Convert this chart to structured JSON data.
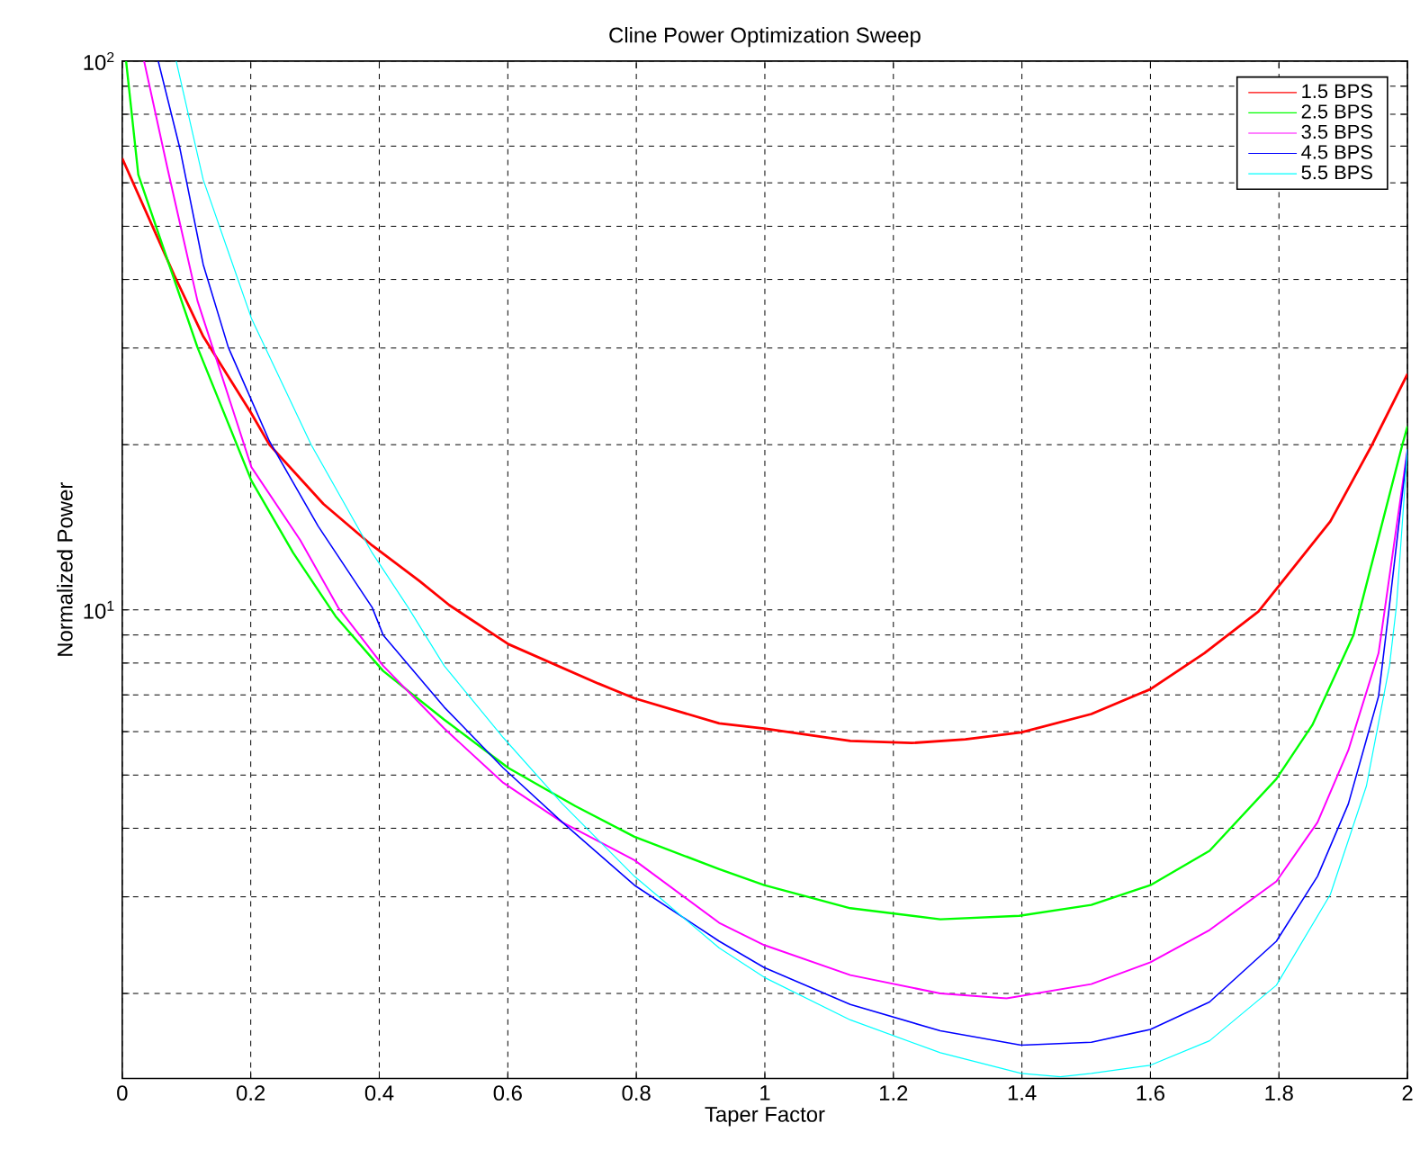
{
  "chart_data": {
    "type": "line",
    "title": "Cline Power Optimization Sweep",
    "xlabel": "Taper Factor",
    "ylabel": "Normalized Power",
    "log": "y",
    "grid": true,
    "legend": "top right",
    "line_style": "solid",
    "xlim": [
      0,
      2
    ],
    "ylim": [
      1.4,
      100
    ],
    "xticks": [
      0,
      0.2,
      0.4,
      0.6,
      0.8,
      1,
      1.2,
      1.4,
      1.6,
      1.8,
      2
    ],
    "yticks": [
      {
        "value": 2,
        "label": null
      },
      {
        "value": 3,
        "label": null
      },
      {
        "value": 4,
        "label": null
      },
      {
        "value": 5,
        "label": null
      },
      {
        "value": 6,
        "label": null
      },
      {
        "value": 7,
        "label": null
      },
      {
        "value": 8,
        "label": null
      },
      {
        "value": 9,
        "label": null
      },
      {
        "value": 10,
        "label": "10$^{1}$"
      },
      {
        "value": 20,
        "label": null
      },
      {
        "value": 30,
        "label": null
      },
      {
        "value": 40,
        "label": null
      },
      {
        "value": 50,
        "label": null
      },
      {
        "value": 60,
        "label": null
      },
      {
        "value": 70,
        "label": null
      },
      {
        "value": 80,
        "label": null
      },
      {
        "value": 90,
        "label": null
      },
      {
        "value": 100,
        "label": "10$^{2}$"
      }
    ],
    "series": [
      {
        "name": "1.5 BPS",
        "color": "#ff0000",
        "x": [
          0,
          0.081,
          0.126,
          0.201,
          0.229,
          0.313,
          0.389,
          0.462,
          0.509,
          0.601,
          0.741,
          0.797,
          0.929,
          0.999,
          1.133,
          1.228,
          1.312,
          1.399,
          1.508,
          1.6,
          1.684,
          1.768,
          1.88,
          1.944,
          2
        ],
        "values": [
          66.5,
          40.7,
          31.5,
          22.8,
          20.0,
          15.6,
          13.1,
          11.3,
          10.2,
          8.66,
          7.34,
          6.9,
          6.21,
          6.08,
          5.77,
          5.72,
          5.81,
          5.98,
          6.46,
          7.17,
          8.34,
          9.93,
          14.5,
          19.9,
          26.9
        ]
      },
      {
        "name": "2.5 BPS",
        "color": "#00ff00",
        "x": [
          0.006,
          0.025,
          0.117,
          0.201,
          0.266,
          0.333,
          0.406,
          0.501,
          0.601,
          0.705,
          0.797,
          0.929,
          0.999,
          1.133,
          1.273,
          1.396,
          1.508,
          1.6,
          1.692,
          1.796,
          1.852,
          1.916,
          1.992,
          2
        ],
        "values": [
          100,
          62.1,
          30.1,
          17.2,
          12.7,
          9.7,
          7.74,
          6.31,
          5.15,
          4.39,
          3.86,
          3.37,
          3.15,
          2.86,
          2.73,
          2.77,
          2.9,
          3.15,
          3.64,
          4.92,
          6.17,
          9.0,
          20.0,
          21.6
        ]
      },
      {
        "name": "3.5 BPS",
        "color": "#ff00ff",
        "x": [
          0.034,
          0.07,
          0.117,
          0.201,
          0.277,
          0.336,
          0.406,
          0.501,
          0.593,
          0.685,
          0.797,
          0.929,
          0.999,
          1.133,
          1.273,
          1.376,
          1.508,
          1.6,
          1.692,
          1.796,
          1.86,
          1.908,
          1.955,
          2
        ],
        "values": [
          100,
          64.1,
          36.6,
          18.2,
          13.4,
          10.1,
          7.91,
          6.08,
          4.84,
          4.1,
          3.5,
          2.69,
          2.45,
          2.16,
          2.0,
          1.96,
          2.08,
          2.28,
          2.61,
          3.2,
          4.1,
          5.55,
          8.34,
          19.6
        ]
      },
      {
        "name": "4.5 BPS",
        "color": "#0000ff",
        "x": [
          0.056,
          0.09,
          0.126,
          0.165,
          0.229,
          0.305,
          0.389,
          0.406,
          0.501,
          0.593,
          0.685,
          0.797,
          0.929,
          0.999,
          1.133,
          1.273,
          1.399,
          1.508,
          1.6,
          1.692,
          1.796,
          1.86,
          1.908,
          1.955,
          1.972,
          2
        ],
        "values": [
          100,
          69.1,
          42.6,
          30.1,
          20.3,
          14.2,
          10.1,
          9.0,
          6.65,
          5.15,
          4.1,
          3.15,
          2.49,
          2.23,
          1.91,
          1.71,
          1.61,
          1.63,
          1.72,
          1.93,
          2.49,
          3.27,
          4.43,
          6.96,
          10.2,
          19.6
        ]
      },
      {
        "name": "5.5 BPS",
        "color": "#00ffff",
        "x": [
          0.084,
          0.126,
          0.201,
          0.294,
          0.389,
          0.445,
          0.501,
          0.593,
          0.685,
          0.797,
          0.929,
          0.999,
          1.133,
          1.273,
          1.399,
          1.46,
          1.508,
          1.6,
          1.692,
          1.796,
          1.88,
          1.936,
          1.972,
          1.983,
          2
        ],
        "values": [
          100,
          60.8,
          34.0,
          20.0,
          12.7,
          10.1,
          7.91,
          5.85,
          4.43,
          3.27,
          2.42,
          2.14,
          1.79,
          1.56,
          1.43,
          1.41,
          1.43,
          1.48,
          1.64,
          2.07,
          3.03,
          4.77,
          7.91,
          10.2,
          19.6
        ]
      }
    ]
  }
}
